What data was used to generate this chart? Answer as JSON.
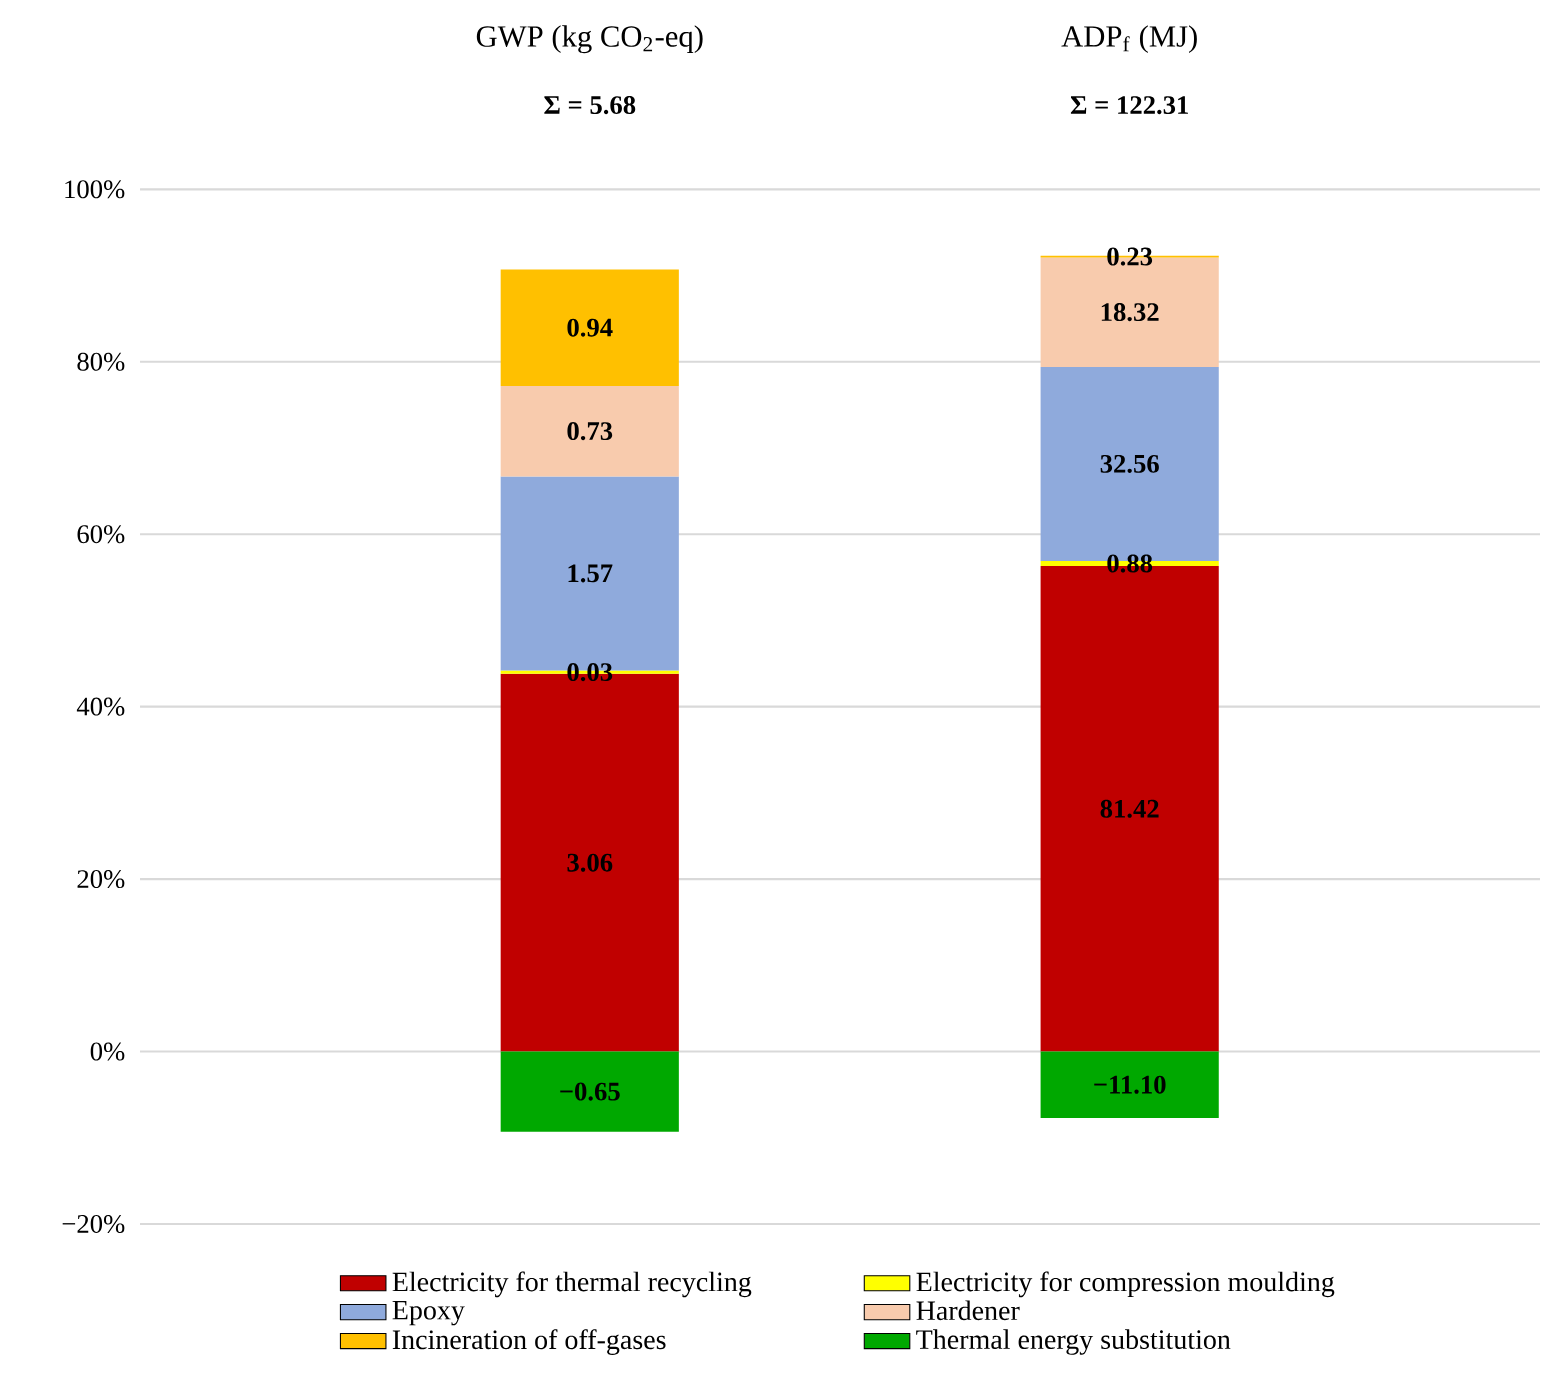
{
  "chart_data": {
    "type": "bar",
    "stacked": true,
    "categories": [
      "GWP  (kg CO$_{2}$-eq)",
      "ADP$_{f}$ (MJ)"
    ],
    "annotations": [
      "Σ = 5.68",
      "Σ = 122.31",
      "3.06",
      "81.42",
      "0.03",
      "0.88",
      "1.57",
      "32.56",
      "0.73",
      "18.32",
      "0.94",
      "0.23",
      "−0.65",
      "−11.10"
    ],
    "series": [
      {
        "name": "Electricity for thermal recycling",
        "color": "#c00000",
        "values": [
          43.8,
          56.3
        ]
      },
      {
        "name": "Electricity for compression moulding",
        "color": "#ffff00",
        "values": [
          0.4,
          0.6
        ]
      },
      {
        "name": "Epoxy",
        "color": "#8faadc",
        "values": [
          22.5,
          22.5
        ]
      },
      {
        "name": "Hardener",
        "color": "#f8cbad",
        "values": [
          10.5,
          12.7
        ]
      },
      {
        "name": "Incineration of off-gases",
        "color": "#ffc000",
        "values": [
          13.5,
          0.2
        ]
      },
      {
        "name": "Thermal energy substitution",
        "color": "#00a800",
        "values": [
          -9.3,
          -7.7
        ]
      }
    ],
    "ylim": [
      -20,
      100
    ],
    "yticks": [
      {
        "value": -20,
        "label": "−20%"
      },
      {
        "value": 0,
        "label": "0%"
      },
      {
        "value": 20,
        "label": "20%"
      },
      {
        "value": 40,
        "label": "40%"
      },
      {
        "value": 60,
        "label": "60%"
      },
      {
        "value": 80,
        "label": "80%"
      },
      {
        "value": 100,
        "label": "100%"
      }
    ],
    "grid": "y",
    "legend": "bottom"
  }
}
